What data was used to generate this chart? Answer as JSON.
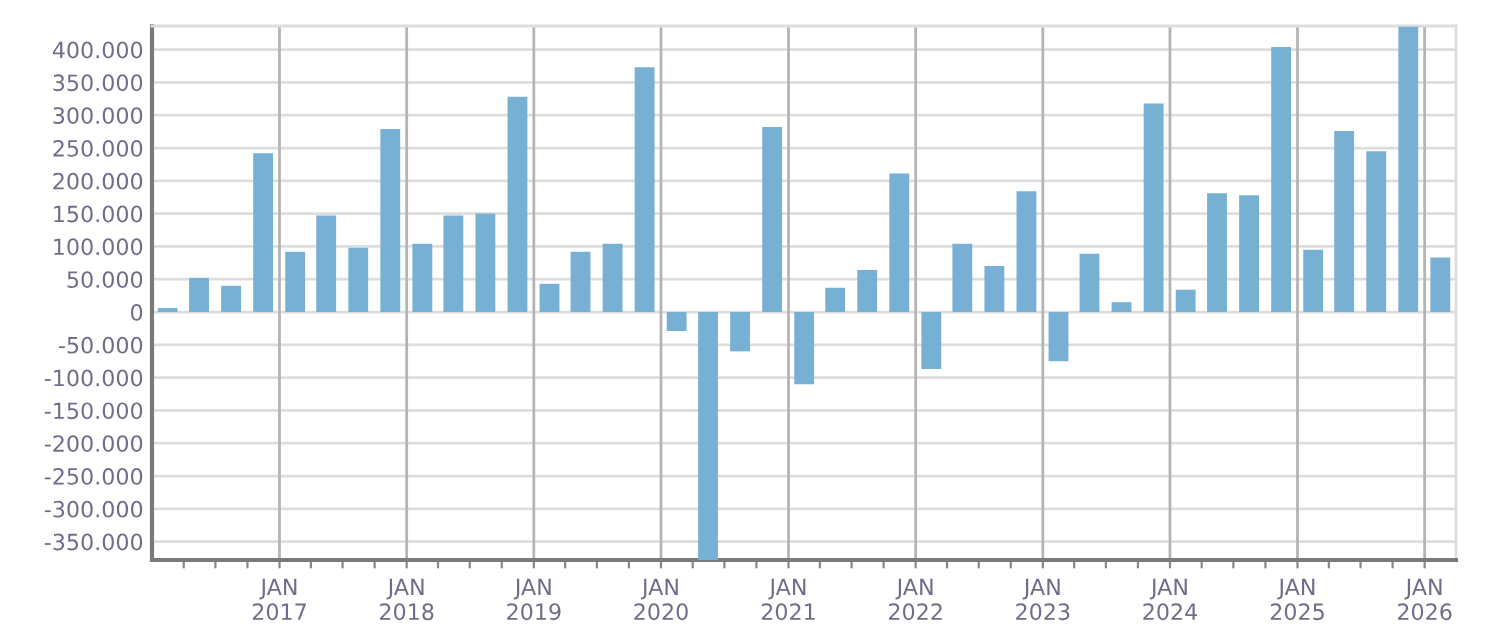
{
  "chart_data": {
    "type": "bar",
    "color": "#78b0d3",
    "x": [
      "2016-02-15",
      "2016-05-15",
      "2016-08-15",
      "2016-11-15",
      "2017-02-15",
      "2017-05-15",
      "2017-08-15",
      "2017-11-15",
      "2018-02-15",
      "2018-05-15",
      "2018-08-15",
      "2018-11-15",
      "2019-02-15",
      "2019-05-15",
      "2019-08-15",
      "2019-11-15",
      "2020-02-15",
      "2020-05-15",
      "2020-08-15",
      "2020-11-15",
      "2021-02-15",
      "2021-05-15",
      "2021-08-15",
      "2021-11-15",
      "2022-02-15",
      "2022-05-15",
      "2022-08-15",
      "2022-11-15",
      "2023-02-15",
      "2023-05-15",
      "2023-08-15",
      "2023-11-15",
      "2024-02-15",
      "2024-05-15",
      "2024-08-15",
      "2024-11-15",
      "2025-02-15",
      "2025-05-15",
      "2025-08-15",
      "2025-11-15",
      "2026-02-15"
    ],
    "values": [
      6000,
      52000,
      40000,
      242000,
      92000,
      147000,
      98000,
      279000,
      104000,
      147000,
      150000,
      328000,
      43000,
      92000,
      104000,
      373000,
      -29000,
      -378000,
      -60000,
      282000,
      -110000,
      37000,
      64000,
      211000,
      -87000,
      104000,
      70000,
      184000,
      -75000,
      89000,
      15000,
      318000,
      34000,
      181000,
      178000,
      404000,
      95000,
      276000,
      245000,
      435000,
      83000
    ],
    "xlim": [
      "2016-01-01",
      "2026-04-01"
    ],
    "xticks": [
      {
        "value": "2016-04-01",
        "label": null
      },
      {
        "value": "2016-07-01",
        "label": null
      },
      {
        "value": "2016-10-01",
        "label": null
      },
      {
        "value": "2017-01-01",
        "label": "JAN\n2017"
      },
      {
        "value": "2017-04-01",
        "label": null
      },
      {
        "value": "2017-07-01",
        "label": null
      },
      {
        "value": "2017-10-01",
        "label": null
      },
      {
        "value": "2018-01-01",
        "label": "JAN\n2018"
      },
      {
        "value": "2018-04-01",
        "label": null
      },
      {
        "value": "2018-07-01",
        "label": null
      },
      {
        "value": "2018-10-01",
        "label": null
      },
      {
        "value": "2019-01-01",
        "label": "JAN\n2019"
      },
      {
        "value": "2019-04-01",
        "label": null
      },
      {
        "value": "2019-07-01",
        "label": null
      },
      {
        "value": "2019-10-01",
        "label": null
      },
      {
        "value": "2020-01-01",
        "label": "JAN\n2020"
      },
      {
        "value": "2020-04-01",
        "label": null
      },
      {
        "value": "2020-07-01",
        "label": null
      },
      {
        "value": "2020-10-01",
        "label": null
      },
      {
        "value": "2021-01-01",
        "label": "JAN\n2021"
      },
      {
        "value": "2021-04-01",
        "label": null
      },
      {
        "value": "2021-07-01",
        "label": null
      },
      {
        "value": "2021-10-01",
        "label": null
      },
      {
        "value": "2022-01-01",
        "label": "JAN\n2022"
      },
      {
        "value": "2022-04-01",
        "label": null
      },
      {
        "value": "2022-07-01",
        "label": null
      },
      {
        "value": "2022-10-01",
        "label": null
      },
      {
        "value": "2023-01-01",
        "label": "JAN\n2023"
      },
      {
        "value": "2023-04-01",
        "label": null
      },
      {
        "value": "2023-07-01",
        "label": null
      },
      {
        "value": "2023-10-01",
        "label": null
      },
      {
        "value": "2024-01-01",
        "label": "JAN\n2024"
      },
      {
        "value": "2024-04-01",
        "label": null
      },
      {
        "value": "2024-07-01",
        "label": null
      },
      {
        "value": "2024-10-01",
        "label": null
      },
      {
        "value": "2025-01-01",
        "label": "JAN\n2025"
      },
      {
        "value": "2025-04-01",
        "label": null
      },
      {
        "value": "2025-07-01",
        "label": null
      },
      {
        "value": "2025-10-01",
        "label": null
      },
      {
        "value": "2026-01-01",
        "label": "JAN\n2026"
      }
    ],
    "ylim": [
      -378000,
      436000
    ],
    "yticks": [
      {
        "value": -350000,
        "label": "-350.000"
      },
      {
        "value": -300000,
        "label": "-300.000"
      },
      {
        "value": -250000,
        "label": "-250.000"
      },
      {
        "value": -200000,
        "label": "-200.000"
      },
      {
        "value": -150000,
        "label": "-150.000"
      },
      {
        "value": -100000,
        "label": "-100.000"
      },
      {
        "value": -50000,
        "label": "-50.000"
      },
      {
        "value": 0,
        "label": "0"
      },
      {
        "value": 50000,
        "label": "50.000"
      },
      {
        "value": 100000,
        "label": "100.000"
      },
      {
        "value": 150000,
        "label": "150.000"
      },
      {
        "value": 200000,
        "label": "200.000"
      },
      {
        "value": 250000,
        "label": "250.000"
      },
      {
        "value": 300000,
        "label": "300.000"
      },
      {
        "value": 350000,
        "label": "350.000"
      },
      {
        "value": 400000,
        "label": "400.000"
      }
    ],
    "grid": true
  }
}
